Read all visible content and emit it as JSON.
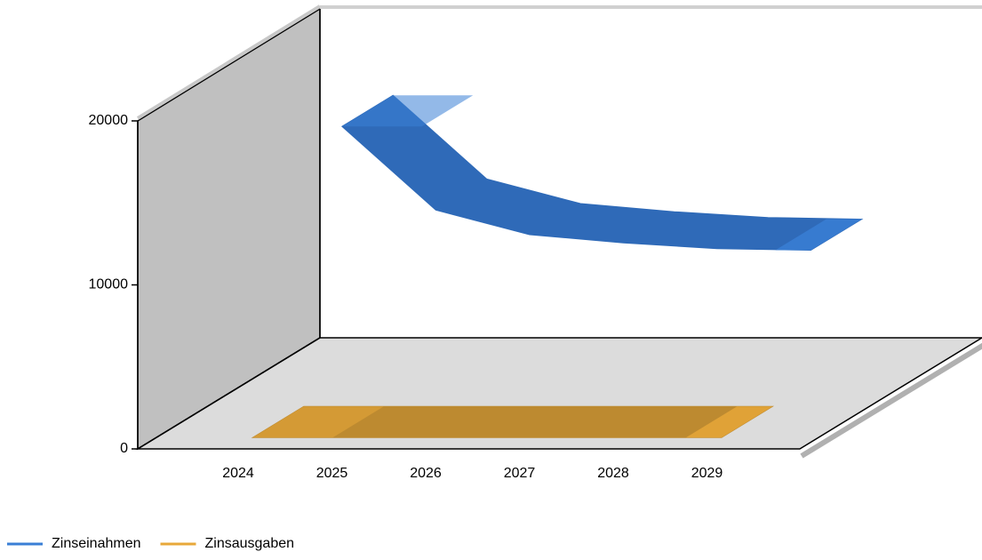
{
  "chart_data": {
    "type": "line3d",
    "categories": [
      "2024",
      "2025",
      "2026",
      "2027",
      "2028",
      "2029"
    ],
    "series": [
      {
        "name": "Zinseinahmen",
        "color": "#3a7fd6",
        "face": "#2f6ab8",
        "values": [
          15800,
          10700,
          9200,
          8700,
          8350,
          8250
        ]
      },
      {
        "name": "Zinsausgaben",
        "color": "#e8a83a",
        "face": "#bd8a30",
        "values": [
          150,
          150,
          150,
          150,
          150,
          150
        ]
      }
    ],
    "ylim": [
      0,
      20000
    ],
    "yticks": [
      0,
      10000,
      20000
    ]
  }
}
